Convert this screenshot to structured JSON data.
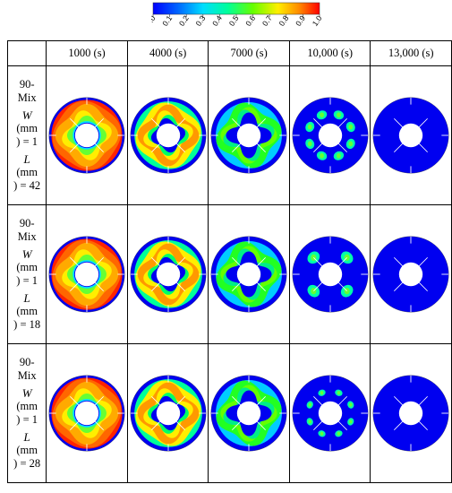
{
  "colorbar": {
    "ticks": [
      "0.0",
      "0.1",
      "0.2",
      "0.3",
      "0.4",
      "0.5",
      "0.6",
      "0.7",
      "0.8",
      "0.9",
      "1.0"
    ],
    "colors": [
      "#0000ff",
      "#0055ff",
      "#00aaff",
      "#00e5ff",
      "#00ffaa",
      "#33ff33",
      "#aaff00",
      "#ffee00",
      "#ffaa00",
      "#ff5500",
      "#ff0000"
    ]
  },
  "columns": [
    "1000 (s)",
    "4000 (s)",
    "7000 (s)",
    "10,000 (s)",
    "13,000 (s)"
  ],
  "rows": [
    {
      "label_lines": [
        "90-",
        "Mix"
      ],
      "w_var": "W",
      "w_unit_lines": [
        "(mm",
        ") = 1"
      ],
      "l_var": "L",
      "l_unit_lines": [
        "(mm",
        ") = 42"
      ],
      "cells": [
        {
          "stage": 0
        },
        {
          "stage": 1
        },
        {
          "stage": 2
        },
        {
          "stage": 3
        },
        {
          "stage": 4
        }
      ]
    },
    {
      "label_lines": [
        "90-",
        "Mix"
      ],
      "w_var": "W",
      "w_unit_lines": [
        "(mm",
        ") = 1"
      ],
      "l_var": "L",
      "l_unit_lines": [
        "(mm",
        ") = 18"
      ],
      "cells": [
        {
          "stage": 0
        },
        {
          "stage": 1
        },
        {
          "stage": 2
        },
        {
          "stage": 3
        },
        {
          "stage": 4
        }
      ]
    },
    {
      "label_lines": [
        "90-",
        "Mix"
      ],
      "w_var": "W",
      "w_unit_lines": [
        "(mm",
        ") = 1"
      ],
      "l_var": "L",
      "l_unit_lines": [
        "(mm",
        ") = 28"
      ],
      "cells": [
        {
          "stage": 0
        },
        {
          "stage": 1
        },
        {
          "stage": 2
        },
        {
          "stage": 3
        },
        {
          "stage": 4
        }
      ]
    }
  ]
}
